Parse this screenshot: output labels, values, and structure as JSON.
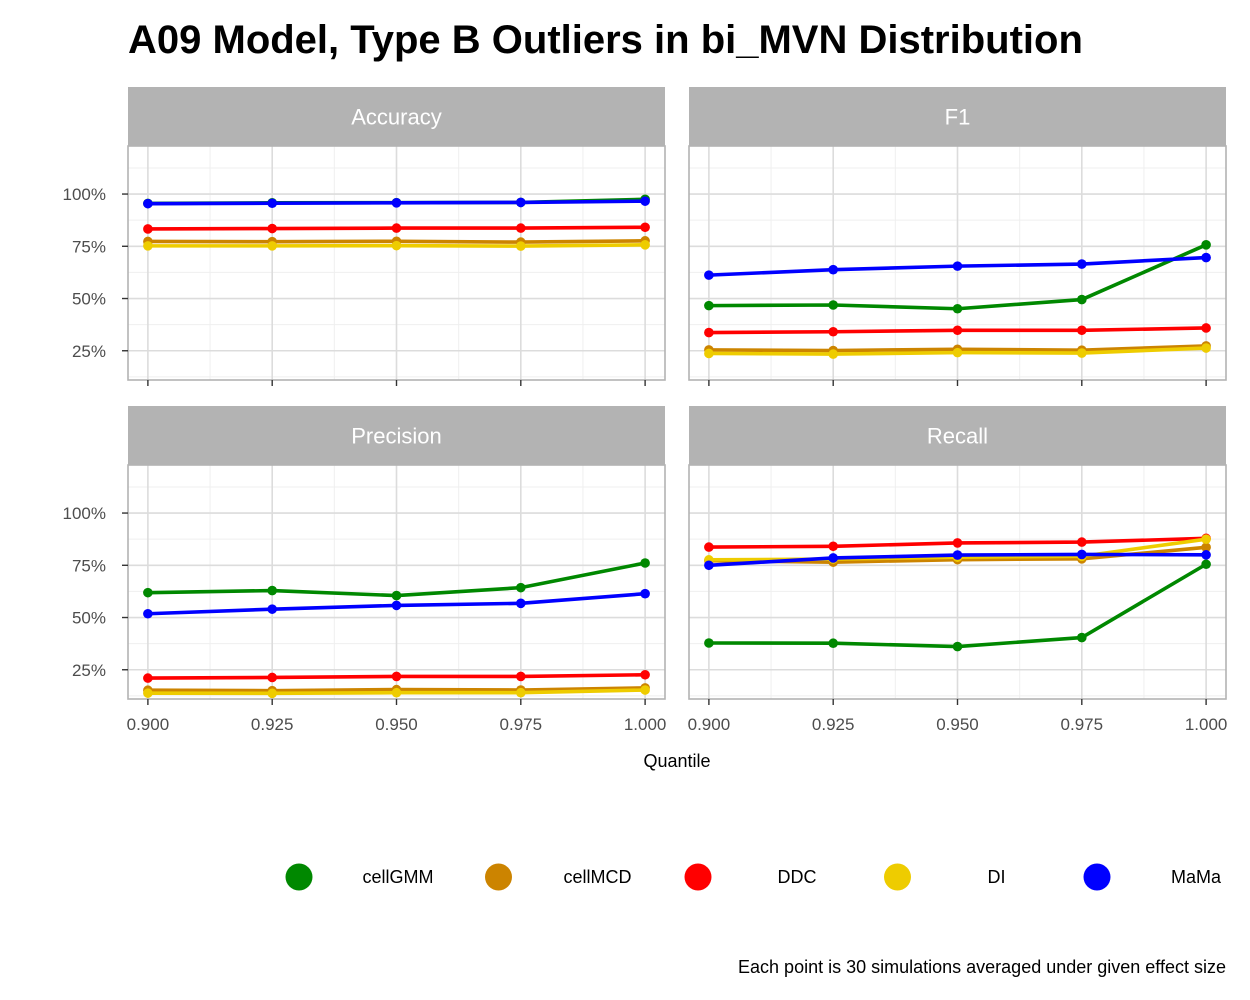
{
  "chart_data": {
    "type": "line",
    "title": "A09 Model, Type B Outliers in bi_MVN Distribution",
    "xlabel": "Quantile",
    "caption": "Each point is 30 simulations averaged under given effect size",
    "x": [
      0.9,
      0.925,
      0.95,
      0.975,
      1.0
    ],
    "x_tick_labels": [
      "0.900",
      "0.925",
      "0.950",
      "0.975",
      "1.000"
    ],
    "xlim": [
      0.896,
      1.004
    ],
    "ylim": [
      0.11,
      1.23
    ],
    "y_ticks": [
      0.25,
      0.5,
      0.75,
      1.0
    ],
    "y_tick_labels": [
      "25%",
      "50%",
      "75%",
      "100%"
    ],
    "legend_position": "bottom",
    "grid": true,
    "colors": {
      "cellGMM": "#008800",
      "cellMCD": "#cc8400",
      "DDC": "#ff0000",
      "DI": "#eecc00",
      "MaMa": "#0000ff",
      "strip": "#b3b3b3",
      "grid_major": "#dcdcdc",
      "grid_minor": "#efefef"
    },
    "legend": [
      "cellGMM",
      "cellMCD",
      "DDC",
      "DI",
      "MaMa"
    ],
    "panels": [
      {
        "name": "Accuracy",
        "series": [
          {
            "name": "cellGMM",
            "values": [
              0.955,
              0.958,
              0.959,
              0.96,
              0.975
            ]
          },
          {
            "name": "cellMCD",
            "values": [
              0.773,
              0.772,
              0.774,
              0.77,
              0.776
            ]
          },
          {
            "name": "DDC",
            "values": [
              0.833,
              0.835,
              0.837,
              0.837,
              0.841
            ]
          },
          {
            "name": "DI",
            "values": [
              0.752,
              0.752,
              0.753,
              0.751,
              0.757
            ]
          },
          {
            "name": "MaMa",
            "values": [
              0.954,
              0.956,
              0.958,
              0.96,
              0.966
            ]
          }
        ]
      },
      {
        "name": "F1",
        "series": [
          {
            "name": "cellGMM",
            "values": [
              0.466,
              0.469,
              0.451,
              0.495,
              0.757
            ]
          },
          {
            "name": "cellMCD",
            "values": [
              0.254,
              0.251,
              0.257,
              0.253,
              0.273
            ]
          },
          {
            "name": "DDC",
            "values": [
              0.337,
              0.341,
              0.348,
              0.348,
              0.359
            ]
          },
          {
            "name": "DI",
            "values": [
              0.237,
              0.234,
              0.241,
              0.239,
              0.263
            ]
          },
          {
            "name": "MaMa",
            "values": [
              0.612,
              0.638,
              0.655,
              0.665,
              0.696
            ]
          }
        ]
      },
      {
        "name": "Precision",
        "series": [
          {
            "name": "cellGMM",
            "values": [
              0.619,
              0.629,
              0.605,
              0.643,
              0.761
            ]
          },
          {
            "name": "cellMCD",
            "values": [
              0.152,
              0.15,
              0.155,
              0.153,
              0.163
            ]
          },
          {
            "name": "DDC",
            "values": [
              0.21,
              0.213,
              0.218,
              0.218,
              0.226
            ]
          },
          {
            "name": "DI",
            "values": [
              0.138,
              0.137,
              0.14,
              0.14,
              0.153
            ]
          },
          {
            "name": "MaMa",
            "values": [
              0.518,
              0.54,
              0.558,
              0.568,
              0.614
            ]
          }
        ]
      },
      {
        "name": "Recall",
        "series": [
          {
            "name": "cellGMM",
            "values": [
              0.378,
              0.377,
              0.361,
              0.404,
              0.755
            ]
          },
          {
            "name": "cellMCD",
            "values": [
              0.772,
              0.765,
              0.777,
              0.781,
              0.836
            ]
          },
          {
            "name": "DDC",
            "values": [
              0.837,
              0.841,
              0.857,
              0.861,
              0.879
            ]
          },
          {
            "name": "DI",
            "values": [
              0.776,
              0.78,
              0.789,
              0.793,
              0.875
            ]
          },
          {
            "name": "MaMa",
            "values": [
              0.75,
              0.785,
              0.799,
              0.802,
              0.8
            ]
          }
        ]
      }
    ]
  }
}
